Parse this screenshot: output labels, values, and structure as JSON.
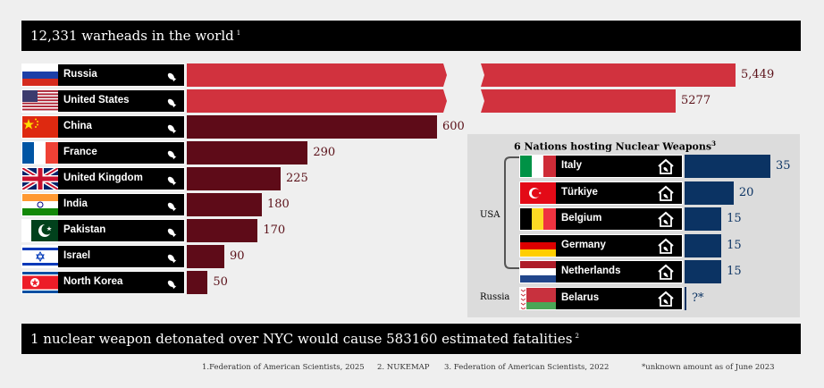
{
  "header": {
    "title": "12,331 warheads in the world",
    "note_ref": "1"
  },
  "footer_banner": {
    "title": "1 nuclear weapon detonated over NYC would cause 583160 estimated fatalities",
    "note_ref": "2"
  },
  "chart_data": {
    "type": "bar",
    "orientation": "horizontal",
    "title": "12,331 warheads in the world",
    "categories": [
      "Russia",
      "United States",
      "China",
      "France",
      "United Kingdom",
      "India",
      "Pakistan",
      "Israel",
      "North Korea"
    ],
    "values": [
      5449,
      5277,
      600,
      290,
      225,
      180,
      170,
      90,
      50
    ],
    "value_labels": [
      "5,449",
      "5277",
      "600",
      "290",
      "225",
      "180",
      "170",
      "90",
      "50"
    ],
    "broken_axis": true,
    "colors": {
      "top_two": "#d1323e",
      "others": "#5e0b18"
    }
  },
  "hosting": {
    "title": "6 Nations hosting Nuclear Weapons",
    "note_ref": "3",
    "host_usa_label": "USA",
    "host_russia_label": "Russia",
    "countries": [
      "Italy",
      "Türkiye",
      "Belgium",
      "Germany",
      "Netherlands",
      "Belarus"
    ],
    "values": [
      35,
      20,
      15,
      15,
      15,
      null
    ],
    "value_labels": [
      "35",
      "20",
      "15",
      "15",
      "15",
      "?*"
    ],
    "color": "#0b3363"
  },
  "footnotes": {
    "n1": "1.Federation of American Scientists, 2025",
    "n2": "2. NUKEMAP",
    "n3": "3. Federation of American Scientists, 2022",
    "n4": "*unknown amount as of June 2023"
  },
  "icons": {
    "warhead": "bomb-icon",
    "host": "house-bomb-icon"
  }
}
